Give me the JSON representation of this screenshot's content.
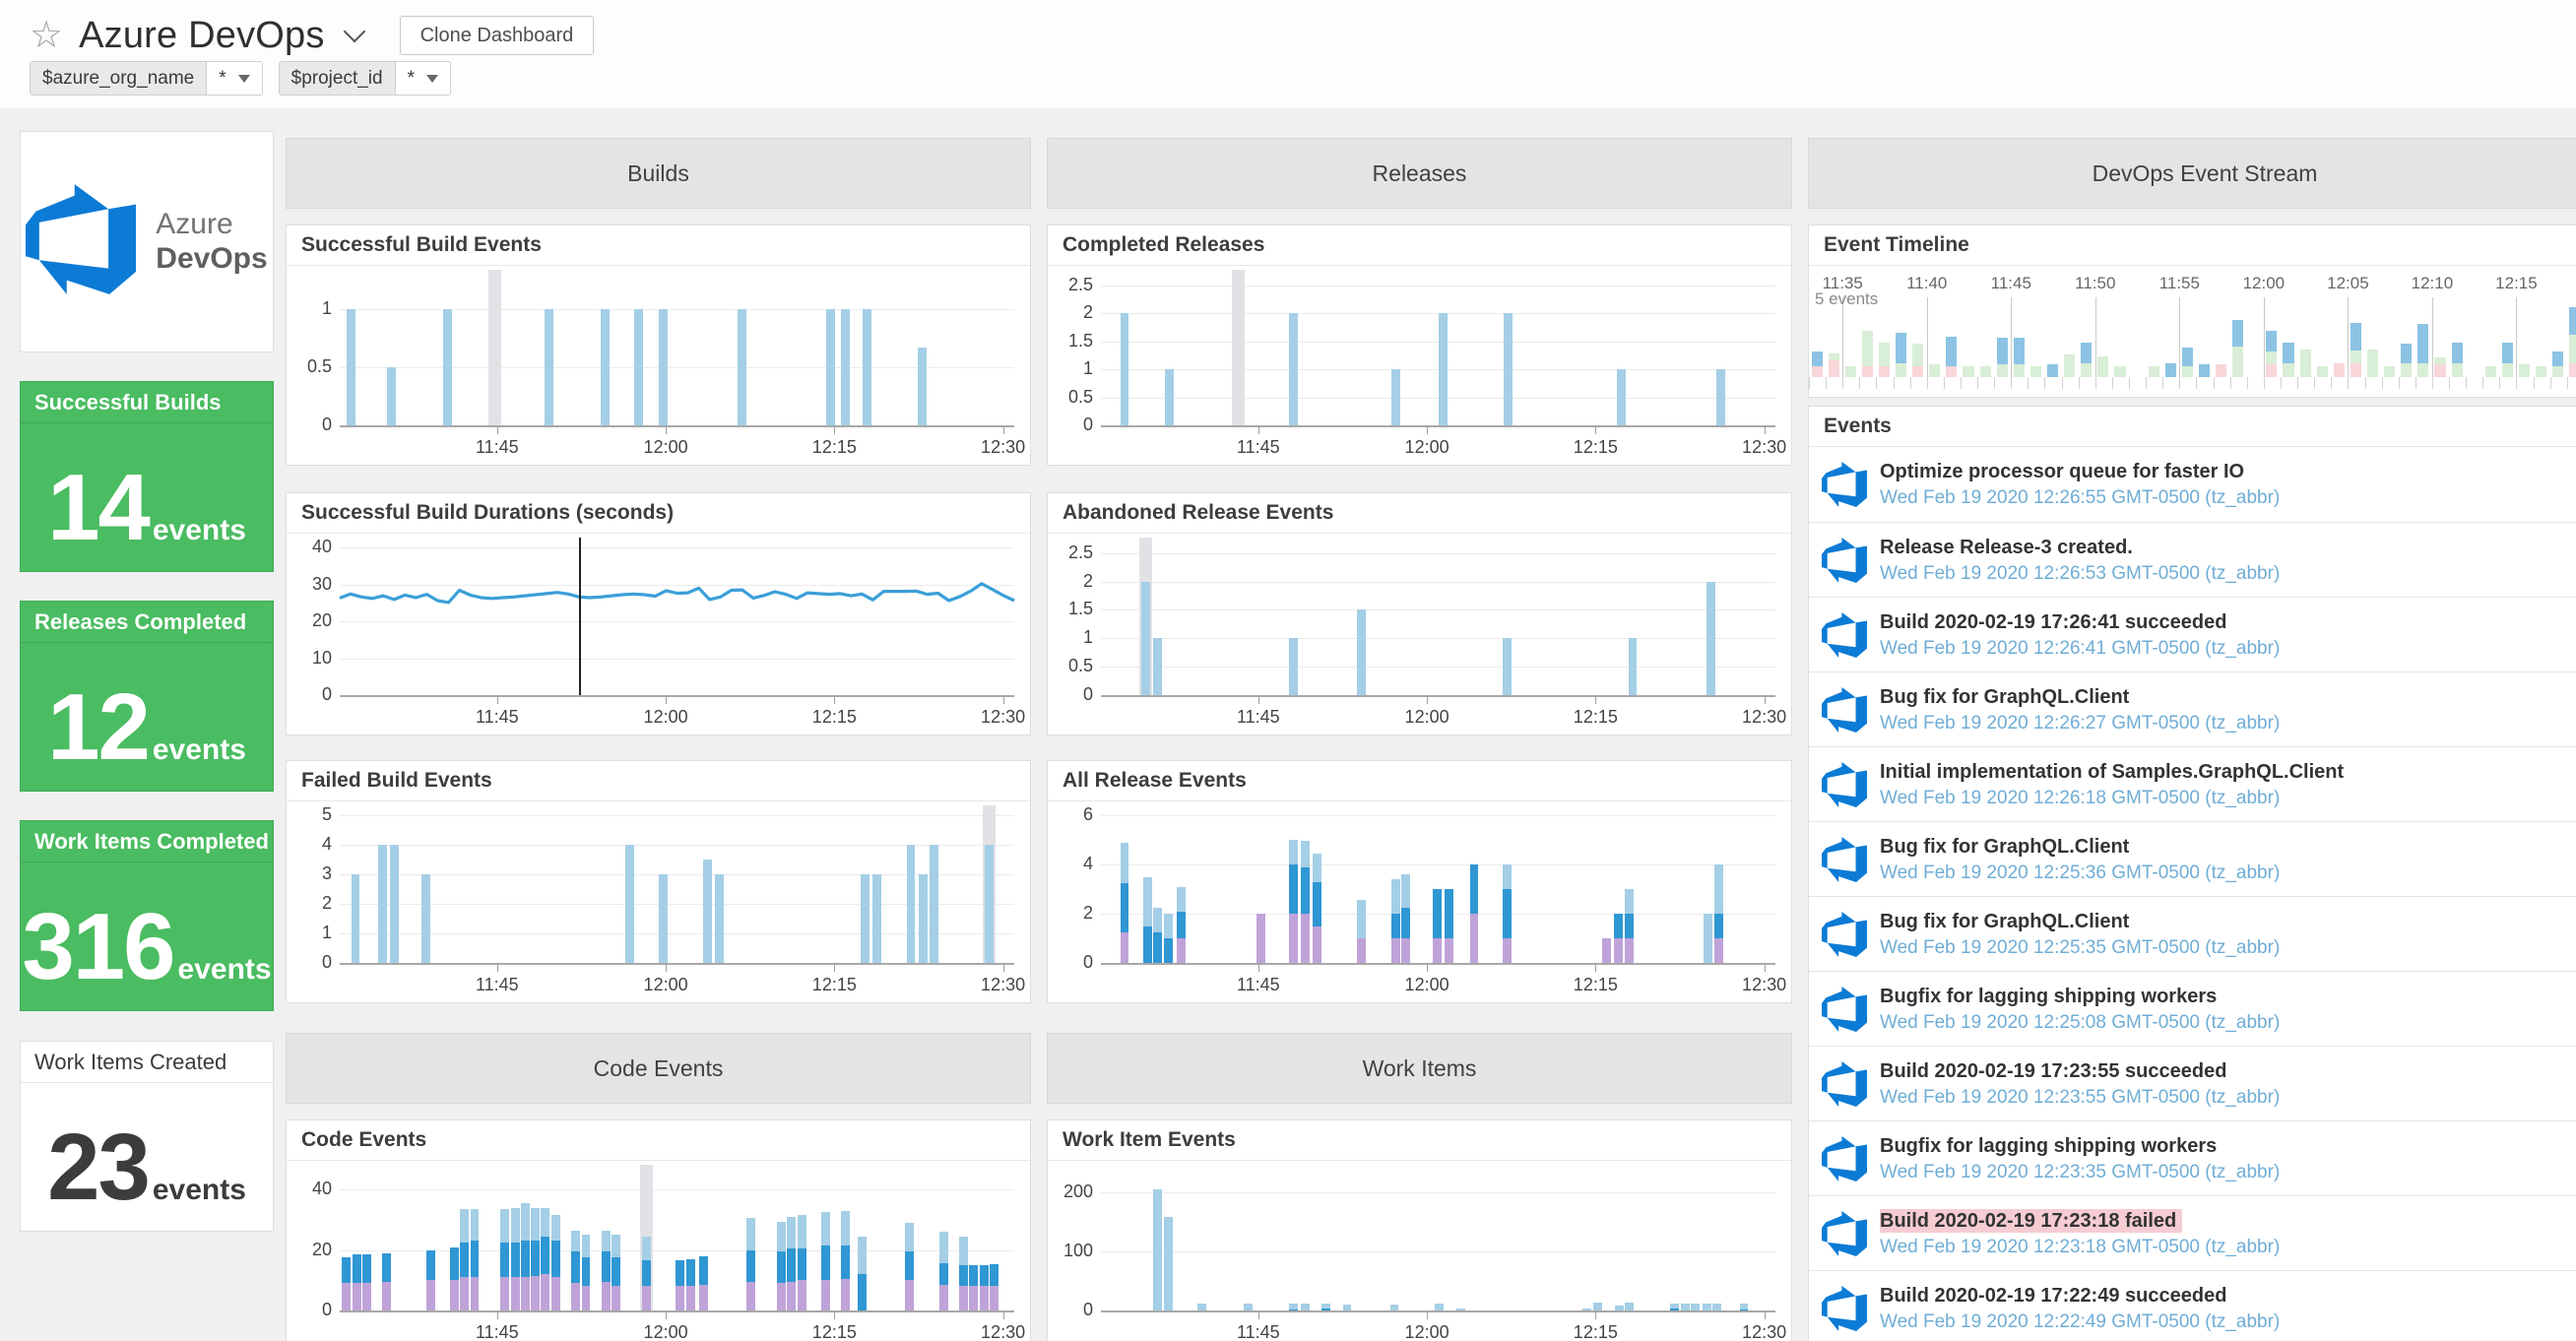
{
  "header": {
    "title": "Azure DevOps",
    "clone_button": "Clone Dashboard"
  },
  "icons": {
    "star": "☆"
  },
  "template_vars": [
    {
      "name": "$azure_org_name",
      "value": "*"
    },
    {
      "name": "$project_id",
      "value": "*"
    }
  ],
  "groups": {
    "builds": "Builds",
    "releases": "Releases",
    "code": "Code Events",
    "work": "Work Items",
    "stream": "DevOps Event Stream"
  },
  "sidebar": {
    "logo": {
      "line1": "Azure",
      "line2": "DevOps"
    },
    "cards": [
      {
        "title": "Successful Builds",
        "value": "14",
        "suffix": "events",
        "variant": "green"
      },
      {
        "title": "Releases Completed",
        "value": "12",
        "suffix": "events",
        "variant": "green"
      },
      {
        "title": "Work Items Completed",
        "value": "316",
        "suffix": "events",
        "variant": "green"
      },
      {
        "title": "Work Items Created",
        "value": "23",
        "suffix": "events",
        "variant": "white"
      }
    ]
  },
  "colors": {
    "series": {
      "l": "#a4cfe6",
      "b": "#2f97d3",
      "p": "#bfa3d8",
      "hover": "#e2e2e6"
    },
    "timeline": {
      "p": "#f8d6da",
      "g": "#d9eed6",
      "b": "#8cc3e4"
    },
    "green_card": "#4abc61",
    "link": "#6fadd6",
    "fail_bg": "#f5ccd2",
    "line": "#3b9fd8",
    "logo": "#0c7bd5"
  },
  "time_axis": {
    "span_minutes": 60,
    "ticks": [
      {
        "m": 15,
        "label": "11:45"
      },
      {
        "m": 30,
        "label": "12:00"
      },
      {
        "m": 45,
        "label": "12:15"
      },
      {
        "m": 60,
        "label": "12:30"
      }
    ]
  },
  "chart_data": [
    {
      "ref": "charts.successful_build_events"
    },
    {
      "ref": "charts.successful_build_durations"
    },
    {
      "ref": "charts.failed_build_events"
    },
    {
      "ref": "charts.completed_releases"
    },
    {
      "ref": "charts.abandoned_release_events"
    },
    {
      "ref": "charts.all_release_events"
    },
    {
      "ref": "charts.code_events"
    },
    {
      "ref": "charts.work_item_events"
    },
    {
      "ref": "event_stream.timeline"
    }
  ],
  "charts": {
    "successful_build_events": {
      "title": "Successful Build Events",
      "type": "bar",
      "ylim": [
        0,
        1.25
      ],
      "yticks": [
        0,
        0.5,
        1
      ],
      "bars": [
        {
          "m": 2,
          "l": 1
        },
        {
          "m": 5.6,
          "l": 0.5
        },
        {
          "m": 10.6,
          "l": 1
        },
        {
          "m": 14.8,
          "hover": true
        },
        {
          "m": 19.6,
          "l": 1
        },
        {
          "m": 24.6,
          "l": 1
        },
        {
          "m": 27.6,
          "l": 1
        },
        {
          "m": 29.8,
          "l": 1
        },
        {
          "m": 36.8,
          "l": 1
        },
        {
          "m": 44.7,
          "l": 1
        },
        {
          "m": 46,
          "l": 1
        },
        {
          "m": 47.9,
          "l": 1
        },
        {
          "m": 52.8,
          "l": 0.67
        }
      ]
    },
    "successful_build_durations": {
      "title": "Successful Build Durations (seconds)",
      "type": "line",
      "ylim": [
        0,
        40
      ],
      "yticks": [
        0,
        10,
        20,
        30,
        40
      ],
      "cursor_m": 22.3,
      "values": [
        26.3,
        27.4,
        26.6,
        26.2,
        26.9,
        25.9,
        27.1,
        26.4,
        27.3,
        25.6,
        25.1,
        28.4,
        27.1,
        26.4,
        26.2,
        26.4,
        26.6,
        26.9,
        27.2,
        27.5,
        27.8,
        27.4,
        26.6,
        26.4,
        26.6,
        26.9,
        27.2,
        27.4,
        27.2,
        26.8,
        28.3,
        27.6,
        27.7,
        29.0,
        25.9,
        26.6,
        28.4,
        28.5,
        26.3,
        27.0,
        28.0,
        27.3,
        26.2,
        27.7,
        27.5,
        27.3,
        27.5,
        26.9,
        27.4,
        25.8,
        28.1,
        28.1,
        28.1,
        28.2,
        27.3,
        27.6,
        25.6,
        26.7,
        28.2,
        30.2,
        28.6,
        27.0,
        25.6
      ]
    },
    "failed_build_events": {
      "title": "Failed Build Events",
      "type": "bar",
      "ylim": [
        0,
        5
      ],
      "yticks": [
        0,
        1,
        2,
        3,
        4,
        5
      ],
      "bars": [
        {
          "m": 2.4,
          "l": 3
        },
        {
          "m": 4.8,
          "l": 4
        },
        {
          "m": 5.9,
          "l": 4
        },
        {
          "m": 8.7,
          "l": 3
        },
        {
          "m": 26.8,
          "l": 4
        },
        {
          "m": 29.8,
          "l": 3
        },
        {
          "m": 33.7,
          "l": 3.5
        },
        {
          "m": 34.8,
          "l": 3
        },
        {
          "m": 47.7,
          "l": 3
        },
        {
          "m": 48.8,
          "l": 3
        },
        {
          "m": 51.8,
          "l": 4
        },
        {
          "m": 52.9,
          "l": 3
        },
        {
          "m": 53.9,
          "l": 4
        },
        {
          "m": 58.8,
          "l": 4,
          "hover": true
        }
      ]
    },
    "completed_releases": {
      "title": "Completed Releases",
      "type": "bar",
      "ylim": [
        0,
        2.6
      ],
      "yticks": [
        0,
        0.5,
        1,
        1.5,
        2,
        2.5
      ],
      "bars": [
        {
          "m": 3.1,
          "l": 2
        },
        {
          "m": 7.1,
          "l": 1
        },
        {
          "m": 13.2,
          "hover": true
        },
        {
          "m": 18.1,
          "l": 2
        },
        {
          "m": 27.2,
          "l": 1
        },
        {
          "m": 31.4,
          "l": 2
        },
        {
          "m": 37.2,
          "l": 2
        },
        {
          "m": 47.3,
          "l": 1
        },
        {
          "m": 56.1,
          "l": 1
        }
      ]
    },
    "abandoned_release_events": {
      "title": "Abandoned Release Events",
      "type": "bar",
      "ylim": [
        0,
        2.6
      ],
      "yticks": [
        0,
        0.5,
        1,
        1.5,
        2,
        2.5
      ],
      "bars": [
        {
          "m": 5,
          "l": 2,
          "hover": true
        },
        {
          "m": 6,
          "l": 1
        },
        {
          "m": 18.1,
          "l": 1
        },
        {
          "m": 24.2,
          "l": 1.5
        },
        {
          "m": 37.1,
          "l": 1
        },
        {
          "m": 48.3,
          "l": 1
        },
        {
          "m": 55.3,
          "l": 2
        }
      ]
    },
    "all_release_events": {
      "title": "All Release Events",
      "type": "stacked-bar",
      "ylim": [
        0,
        6
      ],
      "yticks": [
        0,
        2,
        4,
        6
      ],
      "series_legend": {
        "p": "purple",
        "b": "blue",
        "l": "light-blue"
      },
      "bars": [
        {
          "m": 3.1,
          "p": 1.25,
          "b": 2,
          "l": 1.65
        },
        {
          "m": 5.2,
          "b": 1.5,
          "l": 2
        },
        {
          "m": 6,
          "b": 1.25,
          "l": 1
        },
        {
          "m": 7,
          "b": 1,
          "l": 1
        },
        {
          "m": 8.1,
          "p": 1,
          "b": 1.1,
          "l": 1
        },
        {
          "m": 15.2,
          "p": 2
        },
        {
          "m": 18.1,
          "p": 2,
          "b": 2,
          "l": 1
        },
        {
          "m": 19.2,
          "p": 2,
          "b": 1.9,
          "l": 1.05
        },
        {
          "m": 20.2,
          "p": 1.5,
          "b": 1.8,
          "l": 1.15
        },
        {
          "m": 24.2,
          "p": 1,
          "l": 1.55
        },
        {
          "m": 27.2,
          "p": 1,
          "b": 1,
          "l": 1.4
        },
        {
          "m": 28.1,
          "p": 1,
          "b": 1.25,
          "l": 1.35
        },
        {
          "m": 30.9,
          "p": 1,
          "b": 2
        },
        {
          "m": 32,
          "p": 1,
          "b": 2
        },
        {
          "m": 34.2,
          "p": 2,
          "b": 2
        },
        {
          "m": 37.1,
          "p": 1,
          "b": 2,
          "l": 1
        },
        {
          "m": 46,
          "p": 1
        },
        {
          "m": 47,
          "p": 1,
          "b": 1
        },
        {
          "m": 48,
          "p": 1,
          "b": 1,
          "l": 1
        },
        {
          "m": 55,
          "l": 2
        },
        {
          "m": 56,
          "p": 1,
          "b": 1,
          "l": 2
        }
      ]
    },
    "code_events": {
      "title": "Code Events",
      "type": "stacked-bar",
      "ylim": [
        0,
        45
      ],
      "yticks": [
        0,
        20,
        40
      ],
      "bars": [
        {
          "m": 1.6,
          "p": 9,
          "b": 8.5
        },
        {
          "m": 2.5,
          "p": 9,
          "b": 9.5
        },
        {
          "m": 3.4,
          "p": 9,
          "b": 9.5
        },
        {
          "m": 5.2,
          "p": 9.5,
          "b": 9.5
        },
        {
          "m": 9.1,
          "p": 10,
          "b": 10
        },
        {
          "m": 11.2,
          "p": 10,
          "b": 11
        },
        {
          "m": 12.1,
          "p": 11,
          "b": 11.5,
          "l": 11
        },
        {
          "m": 13,
          "p": 11,
          "b": 12,
          "l": 10.5
        },
        {
          "m": 15.7,
          "p": 11,
          "b": 11.5,
          "l": 11
        },
        {
          "m": 16.6,
          "p": 11,
          "b": 11.5,
          "l": 11.5
        },
        {
          "m": 17.5,
          "p": 11,
          "b": 12,
          "l": 12.5
        },
        {
          "m": 18.4,
          "p": 11.5,
          "b": 11.5,
          "l": 11
        },
        {
          "m": 19.3,
          "p": 12,
          "b": 12.5,
          "l": 9.5
        },
        {
          "m": 20.2,
          "p": 11,
          "b": 12,
          "l": 8.5
        },
        {
          "m": 22,
          "p": 9,
          "b": 10.5,
          "l": 7
        },
        {
          "m": 22.9,
          "p": 8,
          "b": 9.5,
          "l": 7.5
        },
        {
          "m": 24.7,
          "p": 9.5,
          "b": 10,
          "l": 7
        },
        {
          "m": 25.6,
          "p": 8,
          "b": 9.5,
          "l": 7.5
        },
        {
          "m": 28.3,
          "p": 8,
          "b": 8.5,
          "l": 8,
          "hover": true
        },
        {
          "m": 31.3,
          "p": 8,
          "b": 8.5
        },
        {
          "m": 32.2,
          "p": 8,
          "b": 9
        },
        {
          "m": 33.4,
          "p": 8.5,
          "b": 9.5
        },
        {
          "m": 37.6,
          "p": 9.5,
          "b": 10.5,
          "l": 10.5
        },
        {
          "m": 40.3,
          "p": 9,
          "b": 10.5,
          "l": 10
        },
        {
          "m": 41.2,
          "p": 9.5,
          "b": 11,
          "l": 10.5
        },
        {
          "m": 42.1,
          "p": 10,
          "b": 10.5,
          "l": 11
        },
        {
          "m": 44.2,
          "p": 10,
          "b": 11.5,
          "l": 11
        },
        {
          "m": 46,
          "p": 10.5,
          "b": 11,
          "l": 11.5
        },
        {
          "m": 47.5,
          "b": 12,
          "l": 12.5
        },
        {
          "m": 51.7,
          "p": 10,
          "b": 9.5,
          "l": 9.5
        },
        {
          "m": 54.7,
          "p": 8.5,
          "b": 7,
          "l": 10.5
        },
        {
          "m": 56.5,
          "p": 8,
          "b": 7,
          "l": 9.5
        },
        {
          "m": 57.4,
          "p": 8,
          "b": 7
        },
        {
          "m": 58.3,
          "p": 8,
          "b": 7
        },
        {
          "m": 59.2,
          "p": 8,
          "b": 7.2
        }
      ]
    },
    "work_item_events": {
      "title": "Work Item Events",
      "type": "bar",
      "ylim": [
        0,
        230
      ],
      "yticks": [
        0,
        100,
        200
      ],
      "bars": [
        {
          "m": 6,
          "l": 205
        },
        {
          "m": 7,
          "l": 158
        },
        {
          "m": 10,
          "l": 12
        },
        {
          "m": 14.1,
          "l": 11
        },
        {
          "m": 18.1,
          "b": 2,
          "l": 9
        },
        {
          "m": 19.2,
          "l": 11
        },
        {
          "m": 21,
          "b": 3,
          "l": 9
        },
        {
          "m": 22.9,
          "l": 10
        },
        {
          "m": 27.1,
          "l": 10
        },
        {
          "m": 31.1,
          "l": 12
        },
        {
          "m": 33,
          "l": 3
        },
        {
          "m": 44.2,
          "l": 3
        },
        {
          "m": 45.2,
          "l": 14
        },
        {
          "m": 47.1,
          "l": 8
        },
        {
          "m": 48,
          "l": 14
        },
        {
          "m": 52,
          "b": 3,
          "l": 8
        },
        {
          "m": 53,
          "l": 11
        },
        {
          "m": 53.9,
          "l": 11
        },
        {
          "m": 54.9,
          "l": 11
        },
        {
          "m": 55.8,
          "l": 12
        },
        {
          "m": 58.2,
          "b": 2,
          "l": 10
        }
      ]
    }
  },
  "event_stream": {
    "timeline_title": "Event Timeline",
    "events_title": "Events",
    "timeline": {
      "type": "timeline",
      "scale_label": "5 events",
      "ymax": 5,
      "slots": 47,
      "ticks": [
        {
          "i": 2,
          "label": "11:35"
        },
        {
          "i": 7,
          "label": "11:40"
        },
        {
          "i": 12,
          "label": "11:45"
        },
        {
          "i": 17,
          "label": "11:50"
        },
        {
          "i": 22,
          "label": "11:55"
        },
        {
          "i": 27,
          "label": "12:00"
        },
        {
          "i": 32,
          "label": "12:05"
        },
        {
          "i": 37,
          "label": "12:10"
        },
        {
          "i": 42,
          "label": "12:15"
        }
      ],
      "bars": [
        {
          "p": 0.8,
          "b": 1
        },
        {
          "p": 1.2,
          "g": 0.5
        },
        {
          "g": 0.8
        },
        {
          "p": 0.8,
          "g": 2.5
        },
        {
          "p": 0.8,
          "g": 1.7
        },
        {
          "g": 1,
          "b": 2.2
        },
        {
          "p": 0.8,
          "g": 1.6
        },
        {
          "g": 0.9
        },
        {
          "p": 0.8,
          "b": 2.1
        },
        {
          "g": 0.8
        },
        {
          "g": 0.8
        },
        {
          "g": 0.9,
          "b": 1.9
        },
        {
          "g": 0.9,
          "b": 1.9
        },
        {
          "g": 0.8
        },
        {
          "b": 0.9
        },
        {
          "g": 1.6
        },
        {
          "g": 1,
          "b": 1.5
        },
        {
          "g": 1.5
        },
        {
          "g": 0.8
        },
        {},
        {
          "g": 0.8
        },
        {
          "b": 1
        },
        {
          "g": 0.8,
          "b": 1.3
        },
        {
          "b": 0.95
        },
        {
          "p": 0.9
        },
        {
          "g": 2.2,
          "b": 1.9
        },
        {},
        {
          "p": 0.9,
          "g": 0.9,
          "b": 1.5
        },
        {
          "g": 1,
          "b": 1.5
        },
        {
          "g": 2
        },
        {
          "g": 0.8
        },
        {
          "p": 1
        },
        {
          "p": 1,
          "g": 0.9,
          "b": 2
        },
        {
          "g": 2
        },
        {
          "g": 0.8
        },
        {
          "g": 1,
          "b": 1.4
        },
        {
          "g": 1,
          "b": 2.8
        },
        {
          "p": 0.9,
          "g": 0.5
        },
        {
          "g": 1,
          "b": 1.5
        },
        {},
        {
          "g": 0.8
        },
        {
          "g": 1,
          "b": 1.5
        },
        {
          "g": 0.9
        },
        {
          "g": 0.8
        },
        {
          "g": 0.8,
          "b": 1
        },
        {
          "p": 1,
          "g": 2,
          "b": 2
        },
        {
          "p": 1
        }
      ]
    },
    "events": [
      {
        "title": "Optimize processor queue for faster IO",
        "time": "Wed Feb 19 2020 12:26:55 GMT-0500 (tz_abbr)",
        "failed": false
      },
      {
        "title": "Release Release-3 created.",
        "time": "Wed Feb 19 2020 12:26:53 GMT-0500 (tz_abbr)",
        "failed": false
      },
      {
        "title": "Build 2020-02-19 17:26:41 succeeded",
        "time": "Wed Feb 19 2020 12:26:41 GMT-0500 (tz_abbr)",
        "failed": false
      },
      {
        "title": "Bug fix for GraphQL.Client",
        "time": "Wed Feb 19 2020 12:26:27 GMT-0500 (tz_abbr)",
        "failed": false
      },
      {
        "title": "Initial implementation of Samples.GraphQL.Client",
        "time": "Wed Feb 19 2020 12:26:18 GMT-0500 (tz_abbr)",
        "failed": false
      },
      {
        "title": "Bug fix for GraphQL.Client",
        "time": "Wed Feb 19 2020 12:25:36 GMT-0500 (tz_abbr)",
        "failed": false
      },
      {
        "title": "Bug fix for GraphQL.Client",
        "time": "Wed Feb 19 2020 12:25:35 GMT-0500 (tz_abbr)",
        "failed": false
      },
      {
        "title": "Bugfix for lagging shipping workers",
        "time": "Wed Feb 19 2020 12:25:08 GMT-0500 (tz_abbr)",
        "failed": false
      },
      {
        "title": "Build 2020-02-19 17:23:55 succeeded",
        "time": "Wed Feb 19 2020 12:23:55 GMT-0500 (tz_abbr)",
        "failed": false
      },
      {
        "title": "Bugfix for lagging shipping workers",
        "time": "Wed Feb 19 2020 12:23:35 GMT-0500 (tz_abbr)",
        "failed": false
      },
      {
        "title": "Build 2020-02-19 17:23:18 failed",
        "time": "Wed Feb 19 2020 12:23:18 GMT-0500 (tz_abbr)",
        "failed": true
      },
      {
        "title": "Build 2020-02-19 17:22:49 succeeded",
        "time": "Wed Feb 19 2020 12:22:49 GMT-0500 (tz_abbr)",
        "failed": false
      }
    ]
  }
}
